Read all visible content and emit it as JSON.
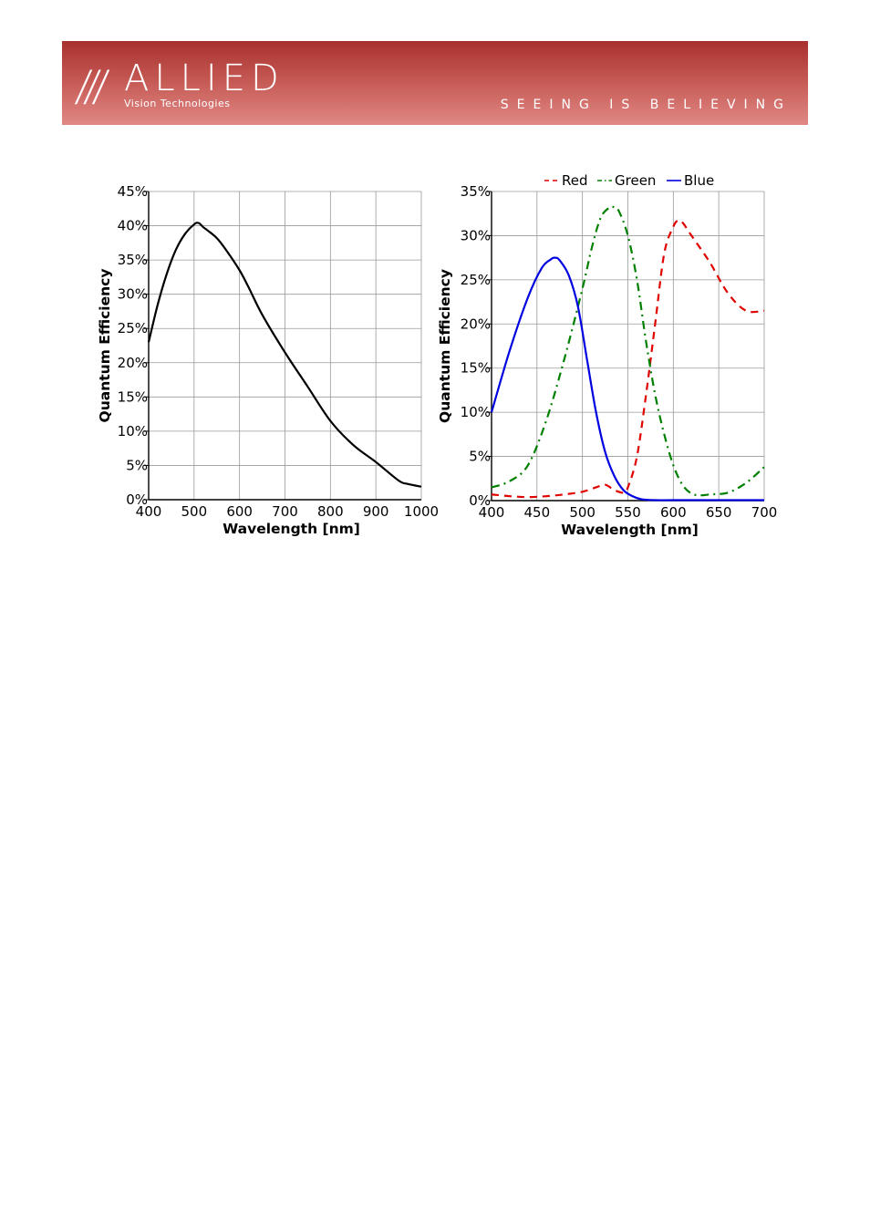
{
  "header": {
    "logo_slashes": "///",
    "logo_word": "ALLIED",
    "logo_sub": "Vision Technologies",
    "tagline": "SEEING IS BELIEVING"
  },
  "colors": {
    "banner_top": "#a8312e",
    "banner_bottom": "#e08885",
    "red": "#e00000",
    "green": "#008000",
    "blue": "#0000e0",
    "mono": "#000000"
  },
  "chart_data": [
    {
      "type": "line",
      "title": "",
      "xlabel": "Wavelength [nm]",
      "ylabel": "Quantum Efficiency",
      "xlim": [
        400,
        1000
      ],
      "ylim": [
        0,
        45
      ],
      "x_ticks": [
        "400",
        "500",
        "600",
        "700",
        "800",
        "900",
        "1000"
      ],
      "y_ticks": [
        "0%",
        "5%",
        "10%",
        "15%",
        "20%",
        "25%",
        "30%",
        "35%",
        "40%",
        "45%"
      ],
      "grid": true,
      "legend": "none",
      "series": [
        {
          "color": "#000000",
          "style": "solid",
          "x": [
            400,
            420,
            440,
            460,
            480,
            500,
            510,
            520,
            530,
            550,
            570,
            600,
            620,
            650,
            700,
            750,
            800,
            850,
            900,
            950,
            970,
            1000
          ],
          "y": [
            23,
            28.5,
            33,
            36.5,
            38.8,
            40.2,
            40.4,
            39.8,
            39.3,
            38.2,
            36.5,
            33.5,
            31,
            27,
            21.5,
            16.5,
            11.5,
            8,
            5.5,
            2.8,
            2.3,
            1.9
          ]
        }
      ]
    },
    {
      "type": "line",
      "title": "",
      "xlabel": "Wavelength [nm]",
      "ylabel": "Quantum Efficiency",
      "xlim": [
        400,
        700
      ],
      "ylim": [
        0,
        35
      ],
      "x_ticks": [
        "400",
        "450",
        "500",
        "550",
        "600",
        "650",
        "700"
      ],
      "y_ticks": [
        "0%",
        "5%",
        "10%",
        "15%",
        "20%",
        "25%",
        "30%",
        "35%"
      ],
      "grid": true,
      "legend": "top",
      "series": [
        {
          "name": "Red",
          "color": "#e00000",
          "style": "dashed",
          "x": [
            400,
            420,
            440,
            460,
            480,
            500,
            515,
            525,
            535,
            545,
            550,
            560,
            570,
            580,
            590,
            600,
            605,
            610,
            620,
            640,
            660,
            680,
            700
          ],
          "y": [
            0.7,
            0.5,
            0.4,
            0.5,
            0.7,
            1.0,
            1.5,
            1.8,
            1.2,
            0.9,
            1.5,
            5,
            12,
            20,
            28,
            31,
            31.7,
            31.5,
            30,
            27,
            23.5,
            21.5,
            21.5
          ]
        },
        {
          "name": "Green",
          "color": "#008000",
          "style": "dashdot",
          "x": [
            400,
            420,
            440,
            460,
            480,
            500,
            510,
            520,
            530,
            535,
            540,
            550,
            560,
            570,
            580,
            590,
            600,
            610,
            620,
            630,
            640,
            660,
            680,
            700
          ],
          "y": [
            1.5,
            2.2,
            4,
            9,
            16,
            24,
            28.5,
            32,
            33.2,
            33.2,
            32.8,
            30,
            25,
            18,
            12,
            7.5,
            4,
            1.8,
            0.8,
            0.6,
            0.7,
            0.9,
            2,
            3.8
          ]
        },
        {
          "name": "Blue",
          "color": "#0000e0",
          "style": "solid",
          "x": [
            400,
            420,
            440,
            455,
            465,
            470,
            475,
            485,
            495,
            505,
            515,
            525,
            535,
            545,
            555,
            565,
            580,
            600,
            650,
            700
          ],
          "y": [
            10,
            17,
            23,
            26.3,
            27.3,
            27.5,
            27.2,
            25.5,
            22,
            16,
            10,
            5.5,
            2.8,
            1.2,
            0.5,
            0.15,
            0.05,
            0.05,
            0.05,
            0.05
          ]
        }
      ]
    }
  ]
}
